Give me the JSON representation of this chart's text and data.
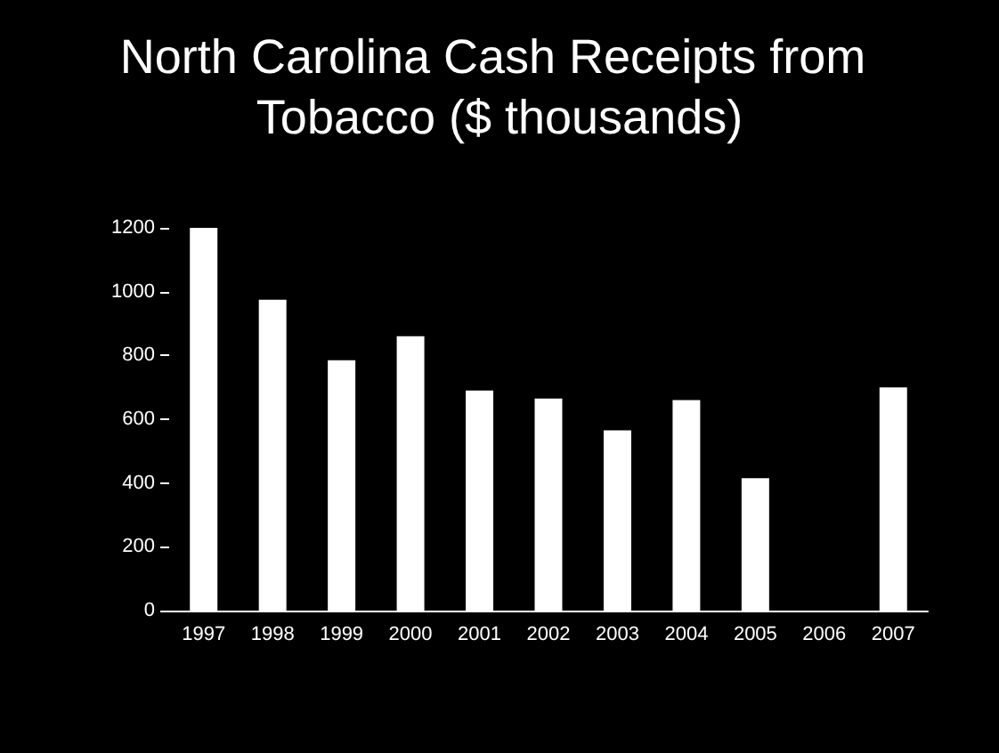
{
  "chart_data": {
    "type": "bar",
    "title": "North Carolina Cash Receipts from Tobacco ($ thousands)",
    "categories": [
      "1997",
      "1998",
      "1999",
      "2000",
      "2001",
      "2002",
      "2003",
      "2004",
      "2005",
      "2006",
      "2007"
    ],
    "values": [
      1200,
      975,
      785,
      860,
      690,
      665,
      565,
      660,
      415,
      null,
      700
    ],
    "color": "#ffffff",
    "ylim": [
      0,
      1200
    ],
    "yticks": [
      0,
      200,
      400,
      600,
      800,
      1000,
      1200
    ]
  }
}
